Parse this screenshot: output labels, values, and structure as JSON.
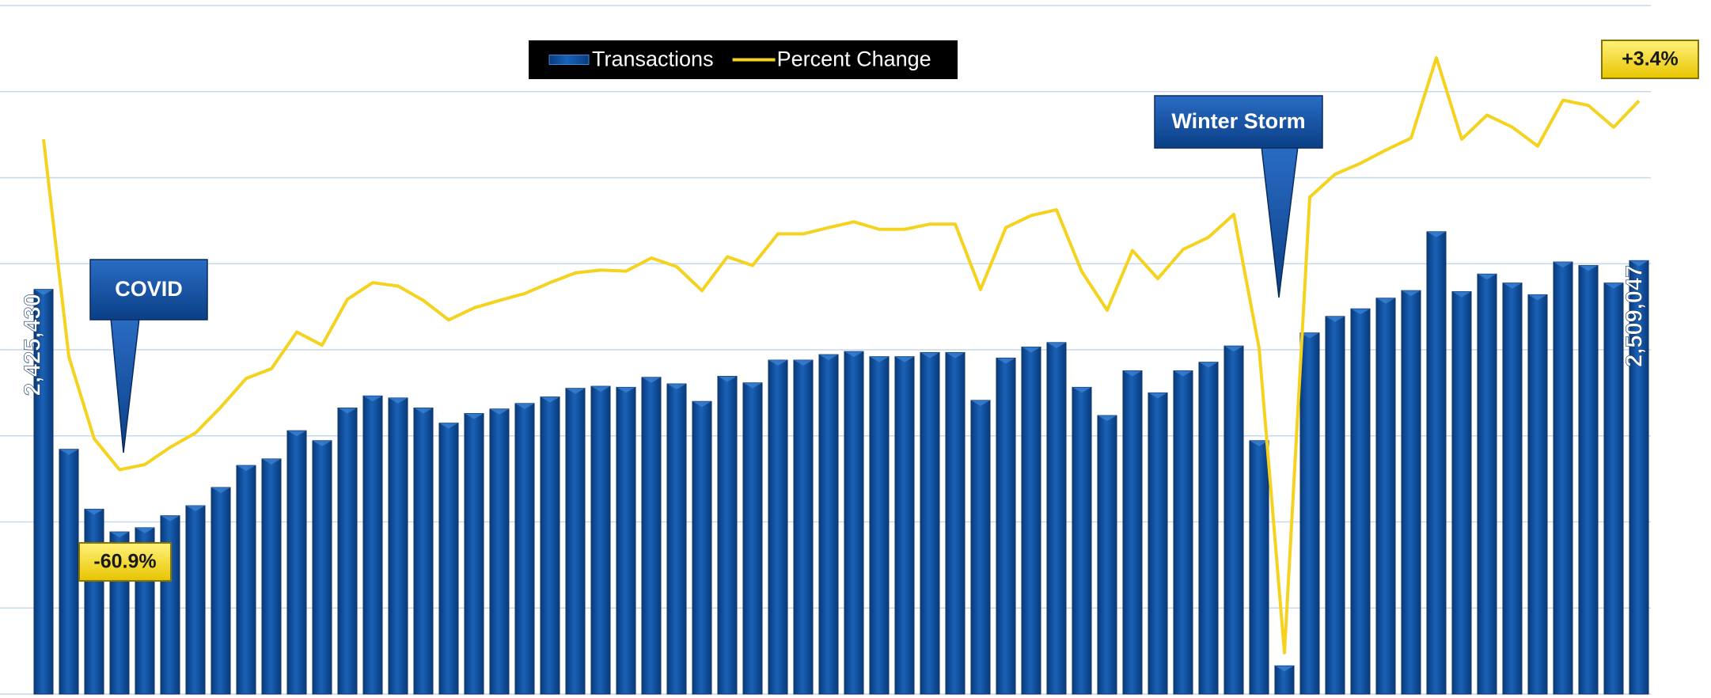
{
  "chart_data": {
    "type": "bar_line",
    "legend": "top",
    "grid": true,
    "ylim": [
      1250000,
      3250000
    ],
    "yticks": [
      1250000,
      1500000,
      1750000,
      2000000,
      2250000,
      2500000,
      2750000,
      3000000,
      3250000
    ],
    "y2lim": [
      -100,
      20
    ],
    "series": [
      {
        "name": "Transactions",
        "type": "bar",
        "color": "#0e4c9c",
        "values": [
          2425430,
          1961000,
          1787000,
          1721000,
          1733000,
          1768000,
          1797000,
          1850000,
          1914000,
          1933000,
          2015000,
          1986000,
          2081000,
          2116000,
          2110000,
          2081000,
          2037000,
          2065000,
          2078000,
          2094000,
          2113000,
          2138000,
          2144000,
          2141000,
          2170000,
          2151000,
          2100000,
          2173000,
          2154000,
          2220000,
          2220000,
          2236000,
          2245000,
          2230000,
          2230000,
          2242000,
          2242000,
          2103000,
          2226000,
          2258000,
          2271000,
          2141000,
          2059000,
          2189000,
          2125000,
          2189000,
          2214000,
          2261000,
          1986000,
          1332000,
          2299000,
          2347000,
          2369000,
          2400000,
          2422000,
          2593000,
          2419000,
          2470000,
          2444000,
          2410000,
          2505000,
          2495000,
          2444000,
          2509047
        ],
        "value_labels": [
          "2,425,430",
          null,
          null,
          null,
          null,
          null,
          null,
          null,
          null,
          null,
          null,
          null,
          null,
          null,
          null,
          null,
          null,
          null,
          null,
          null,
          null,
          null,
          null,
          null,
          null,
          null,
          null,
          null,
          null,
          null,
          null,
          null,
          null,
          null,
          null,
          null,
          null,
          null,
          null,
          null,
          null,
          null,
          null,
          null,
          null,
          null,
          null,
          null,
          null,
          null,
          null,
          null,
          null,
          null,
          null,
          null,
          null,
          null,
          null,
          null,
          null,
          null,
          null,
          "2,509,047"
        ]
      },
      {
        "name": "Percent Change",
        "type": "line",
        "axis": "y2",
        "color": "#f5d21e",
        "values": [
          -3.3,
          -41.2,
          -55.5,
          -60.9,
          -60.0,
          -57.0,
          -54.5,
          -50.0,
          -45.0,
          -43.3,
          -36.9,
          -39.2,
          -31.2,
          -28.3,
          -28.9,
          -31.4,
          -34.8,
          -32.7,
          -31.4,
          -30.2,
          -28.3,
          -26.6,
          -26.1,
          -26.3,
          -24.0,
          -25.5,
          -29.7,
          -23.8,
          -25.3,
          -19.8,
          -19.8,
          -18.7,
          -17.7,
          -19.0,
          -19.0,
          -18.1,
          -18.1,
          -29.5,
          -18.7,
          -16.6,
          -15.6,
          -26.4,
          -33.1,
          -22.7,
          -27.6,
          -22.5,
          -20.4,
          -16.4,
          -39.7,
          -92.8,
          -13.4,
          -9.4,
          -7.5,
          -5.2,
          -3.1,
          10.9,
          -3.3,
          0.9,
          -1.2,
          -4.5,
          3.5,
          2.6,
          -1.2,
          3.4
        ],
        "value_labels": [
          null,
          null,
          null,
          "-60.9%",
          null,
          null,
          null,
          null,
          null,
          null,
          null,
          null,
          null,
          null,
          null,
          null,
          null,
          null,
          null,
          null,
          null,
          null,
          null,
          null,
          null,
          null,
          null,
          null,
          null,
          null,
          null,
          null,
          null,
          null,
          null,
          null,
          null,
          null,
          null,
          null,
          null,
          null,
          null,
          null,
          null,
          null,
          null,
          null,
          null,
          null,
          null,
          null,
          null,
          null,
          null,
          null,
          null,
          null,
          null,
          null,
          null,
          null,
          null,
          "+3.4%"
        ]
      }
    ],
    "annotations": [
      {
        "text": "COVID"
      },
      {
        "text": "Winter Storm"
      }
    ]
  }
}
